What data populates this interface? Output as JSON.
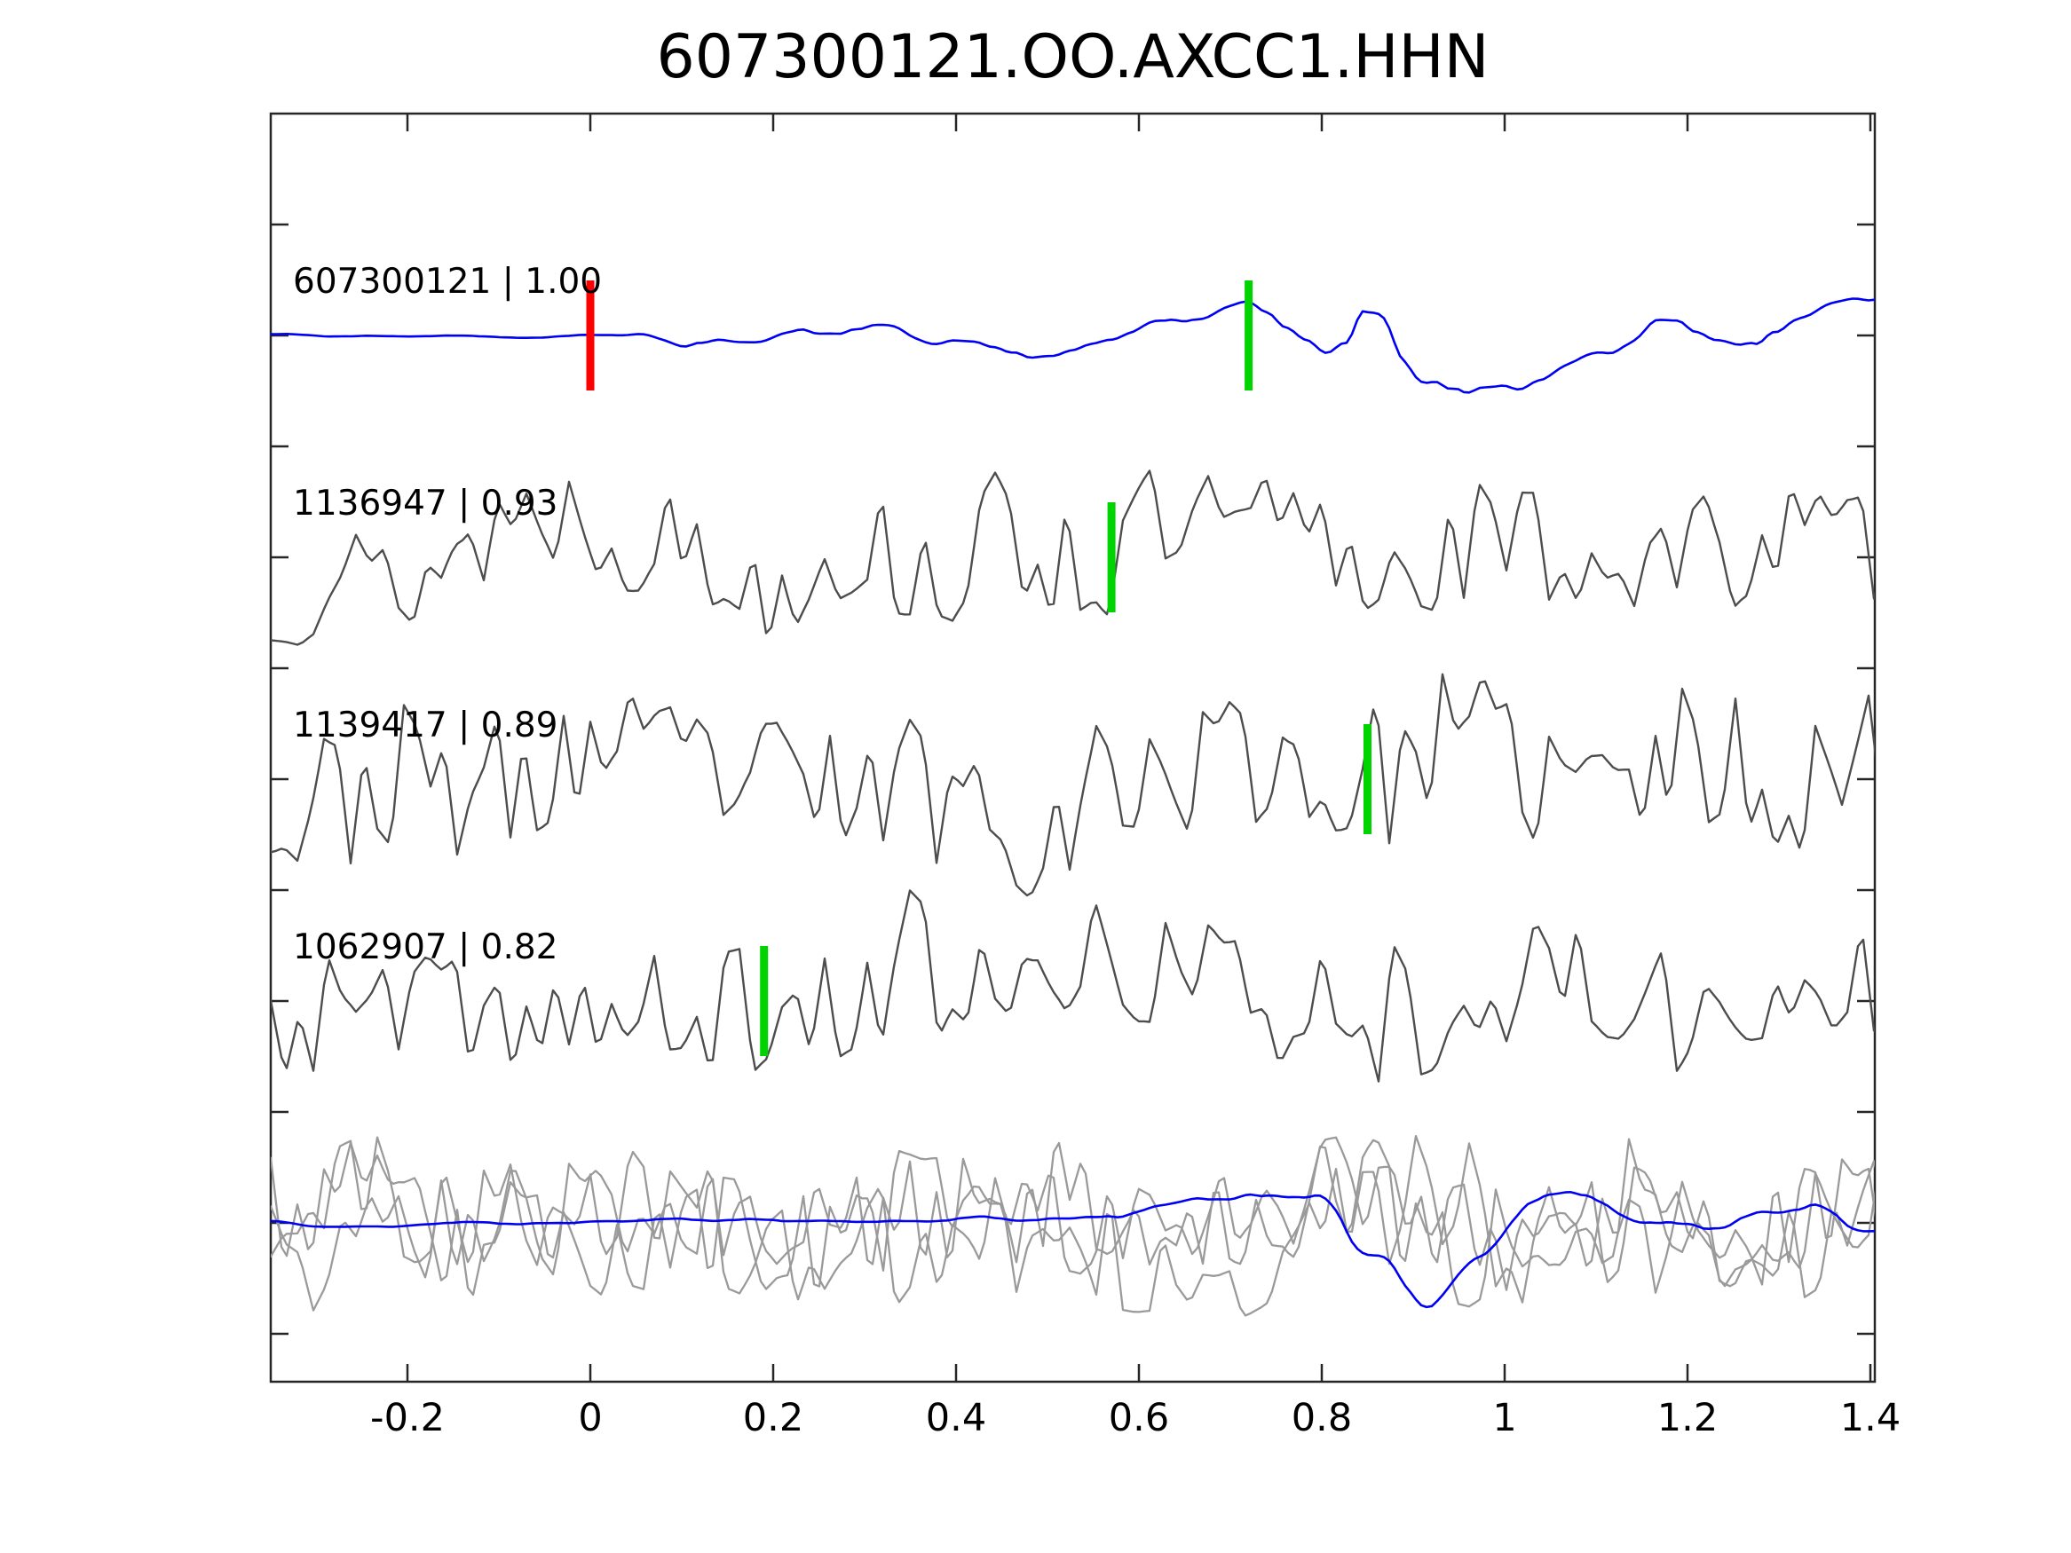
{
  "chart_data": {
    "type": "line",
    "title": "607300121.OO.AXCC1.HHN",
    "xlabel": "",
    "ylabel": "",
    "xlim": [
      -0.35,
      1.405
    ],
    "x_ticks": [
      -0.2,
      0,
      0.2,
      0.4,
      0.6,
      0.8,
      1,
      1.2,
      1.4
    ],
    "x_tick_labels": [
      "-0.2",
      "0",
      "0.2",
      "0.4",
      "0.6",
      "0.8",
      "1",
      "1.2",
      "1.4"
    ],
    "y_ticks_labeled": false,
    "grid": false,
    "legend": false,
    "colors": {
      "template_blue": "#0000f5",
      "member_gray": "#4d4d4d",
      "overlay_gray": "#9a9a9a",
      "pick_green": "#00d400",
      "pick_red": "#ff0000",
      "frame": "#262626",
      "text": "#000000"
    },
    "traces": [
      {
        "id": "607300121",
        "correlation": "1.00",
        "label": "607300121 | 1.00",
        "color": "template_blue",
        "row": 0,
        "markers": [
          {
            "x": 0.0,
            "color": "pick_red"
          },
          {
            "x": 0.72,
            "color": "pick_green"
          }
        ],
        "render": {
          "seed": 7,
          "amp": 150,
          "width": 2.6,
          "bands": [
            {
              "step": 68,
              "smooth": 1,
              "weight": 0.85,
              "interp": "cosine"
            },
            {
              "step": 22,
              "smooth": 1,
              "weight": 0.3,
              "interp": "cosine"
            }
          ],
          "envelope": [
            [
              -0.35,
              0.05
            ],
            [
              0.0,
              0.06
            ],
            [
              0.07,
              0.18
            ],
            [
              0.15,
              0.32
            ],
            [
              0.3,
              0.38
            ],
            [
              0.45,
              0.45
            ],
            [
              0.58,
              0.55
            ],
            [
              0.7,
              0.8
            ],
            [
              0.85,
              1.0
            ],
            [
              1.0,
              0.9
            ],
            [
              1.12,
              0.72
            ],
            [
              1.25,
              0.78
            ],
            [
              1.405,
              0.7
            ]
          ]
        }
      },
      {
        "id": "1136947",
        "correlation": "0.93",
        "label": "1136947 | 0.93",
        "color": "member_gray",
        "row": 1,
        "markers": [
          {
            "x": 0.57,
            "color": "pick_green"
          }
        ],
        "render": {
          "seed": 13,
          "amp": 128,
          "width": 2.4,
          "bands": [
            {
              "step": 16,
              "smooth": 0,
              "weight": 0.7,
              "interp": "linear"
            },
            {
              "step": 52,
              "smooth": 1,
              "weight": 0.55,
              "interp": "cosine"
            }
          ],
          "envelope": [
            [
              -0.35,
              0.8
            ],
            [
              0.3,
              0.85
            ],
            [
              0.55,
              1.0
            ],
            [
              0.75,
              0.9
            ],
            [
              1.405,
              0.9
            ]
          ]
        }
      },
      {
        "id": "1139417",
        "correlation": "0.89",
        "label": "1139417 | 0.89",
        "color": "member_gray",
        "row": 2,
        "markers": [
          {
            "x": 0.85,
            "color": "pick_green"
          }
        ],
        "render": {
          "seed": 23,
          "amp": 132,
          "width": 2.4,
          "bands": [
            {
              "step": 15,
              "smooth": 0,
              "weight": 0.7,
              "interp": "linear"
            },
            {
              "step": 48,
              "smooth": 1,
              "weight": 0.55,
              "interp": "cosine"
            }
          ],
          "envelope": [
            [
              -0.35,
              0.95
            ],
            [
              1.405,
              0.95
            ]
          ]
        }
      },
      {
        "id": "1062907",
        "correlation": "0.82",
        "label": "1062907 | 0.82",
        "color": "member_gray",
        "row": 3,
        "markers": [
          {
            "x": 0.19,
            "color": "pick_green"
          }
        ],
        "render": {
          "seed": 37,
          "amp": 128,
          "width": 2.4,
          "bands": [
            {
              "step": 16,
              "smooth": 0,
              "weight": 0.7,
              "interp": "linear"
            },
            {
              "step": 50,
              "smooth": 1,
              "weight": 0.55,
              "interp": "cosine"
            }
          ],
          "envelope": [
            [
              -0.35,
              0.9
            ],
            [
              0.2,
              1.0
            ],
            [
              0.7,
              0.95
            ],
            [
              1.405,
              0.9
            ]
          ]
        }
      }
    ],
    "overlay_row": {
      "row": 4,
      "description": "aligned member traces overlaid with template",
      "traces": [
        {
          "color": "overlay_gray",
          "render": {
            "seed": 51,
            "amp": 118,
            "width": 2.3,
            "bands": [
              {
                "step": 15,
                "smooth": 0,
                "weight": 0.7,
                "interp": "linear"
              },
              {
                "step": 46,
                "smooth": 1,
                "weight": 0.55,
                "interp": "cosine"
              }
            ],
            "envelope": [
              [
                -0.35,
                0.9
              ],
              [
                1.405,
                0.9
              ]
            ]
          }
        },
        {
          "color": "overlay_gray",
          "render": {
            "seed": 52,
            "amp": 116,
            "width": 2.3,
            "bands": [
              {
                "step": 16,
                "smooth": 0,
                "weight": 0.7,
                "interp": "linear"
              },
              {
                "step": 50,
                "smooth": 1,
                "weight": 0.55,
                "interp": "cosine"
              }
            ],
            "envelope": [
              [
                -0.35,
                0.85
              ],
              [
                1.405,
                0.9
              ]
            ]
          }
        },
        {
          "color": "overlay_gray",
          "render": {
            "seed": 53,
            "amp": 118,
            "width": 2.3,
            "bands": [
              {
                "step": 15,
                "smooth": 0,
                "weight": 0.7,
                "interp": "linear"
              },
              {
                "step": 44,
                "smooth": 1,
                "weight": 0.55,
                "interp": "cosine"
              }
            ],
            "envelope": [
              [
                -0.35,
                0.88
              ],
              [
                1.405,
                0.92
              ]
            ]
          }
        },
        {
          "color": "template_blue",
          "render": {
            "seed": 61,
            "amp": 112,
            "width": 2.6,
            "bands": [
              {
                "step": 62,
                "smooth": 1,
                "weight": 0.85,
                "interp": "cosine"
              },
              {
                "step": 20,
                "smooth": 1,
                "weight": 0.25,
                "interp": "cosine"
              }
            ],
            "envelope": [
              [
                -0.35,
                0.09
              ],
              [
                0.25,
                0.1
              ],
              [
                0.42,
                0.2
              ],
              [
                0.58,
                0.3
              ],
              [
                0.7,
                0.5
              ],
              [
                0.78,
                0.9
              ],
              [
                0.92,
                1.0
              ],
              [
                1.02,
                0.55
              ],
              [
                1.15,
                0.4
              ],
              [
                1.3,
                0.45
              ],
              [
                1.405,
                0.38
              ]
            ]
          }
        }
      ]
    },
    "waveform_note": "waveform sample values are below readable resolution; rendered as seeded approximations"
  }
}
